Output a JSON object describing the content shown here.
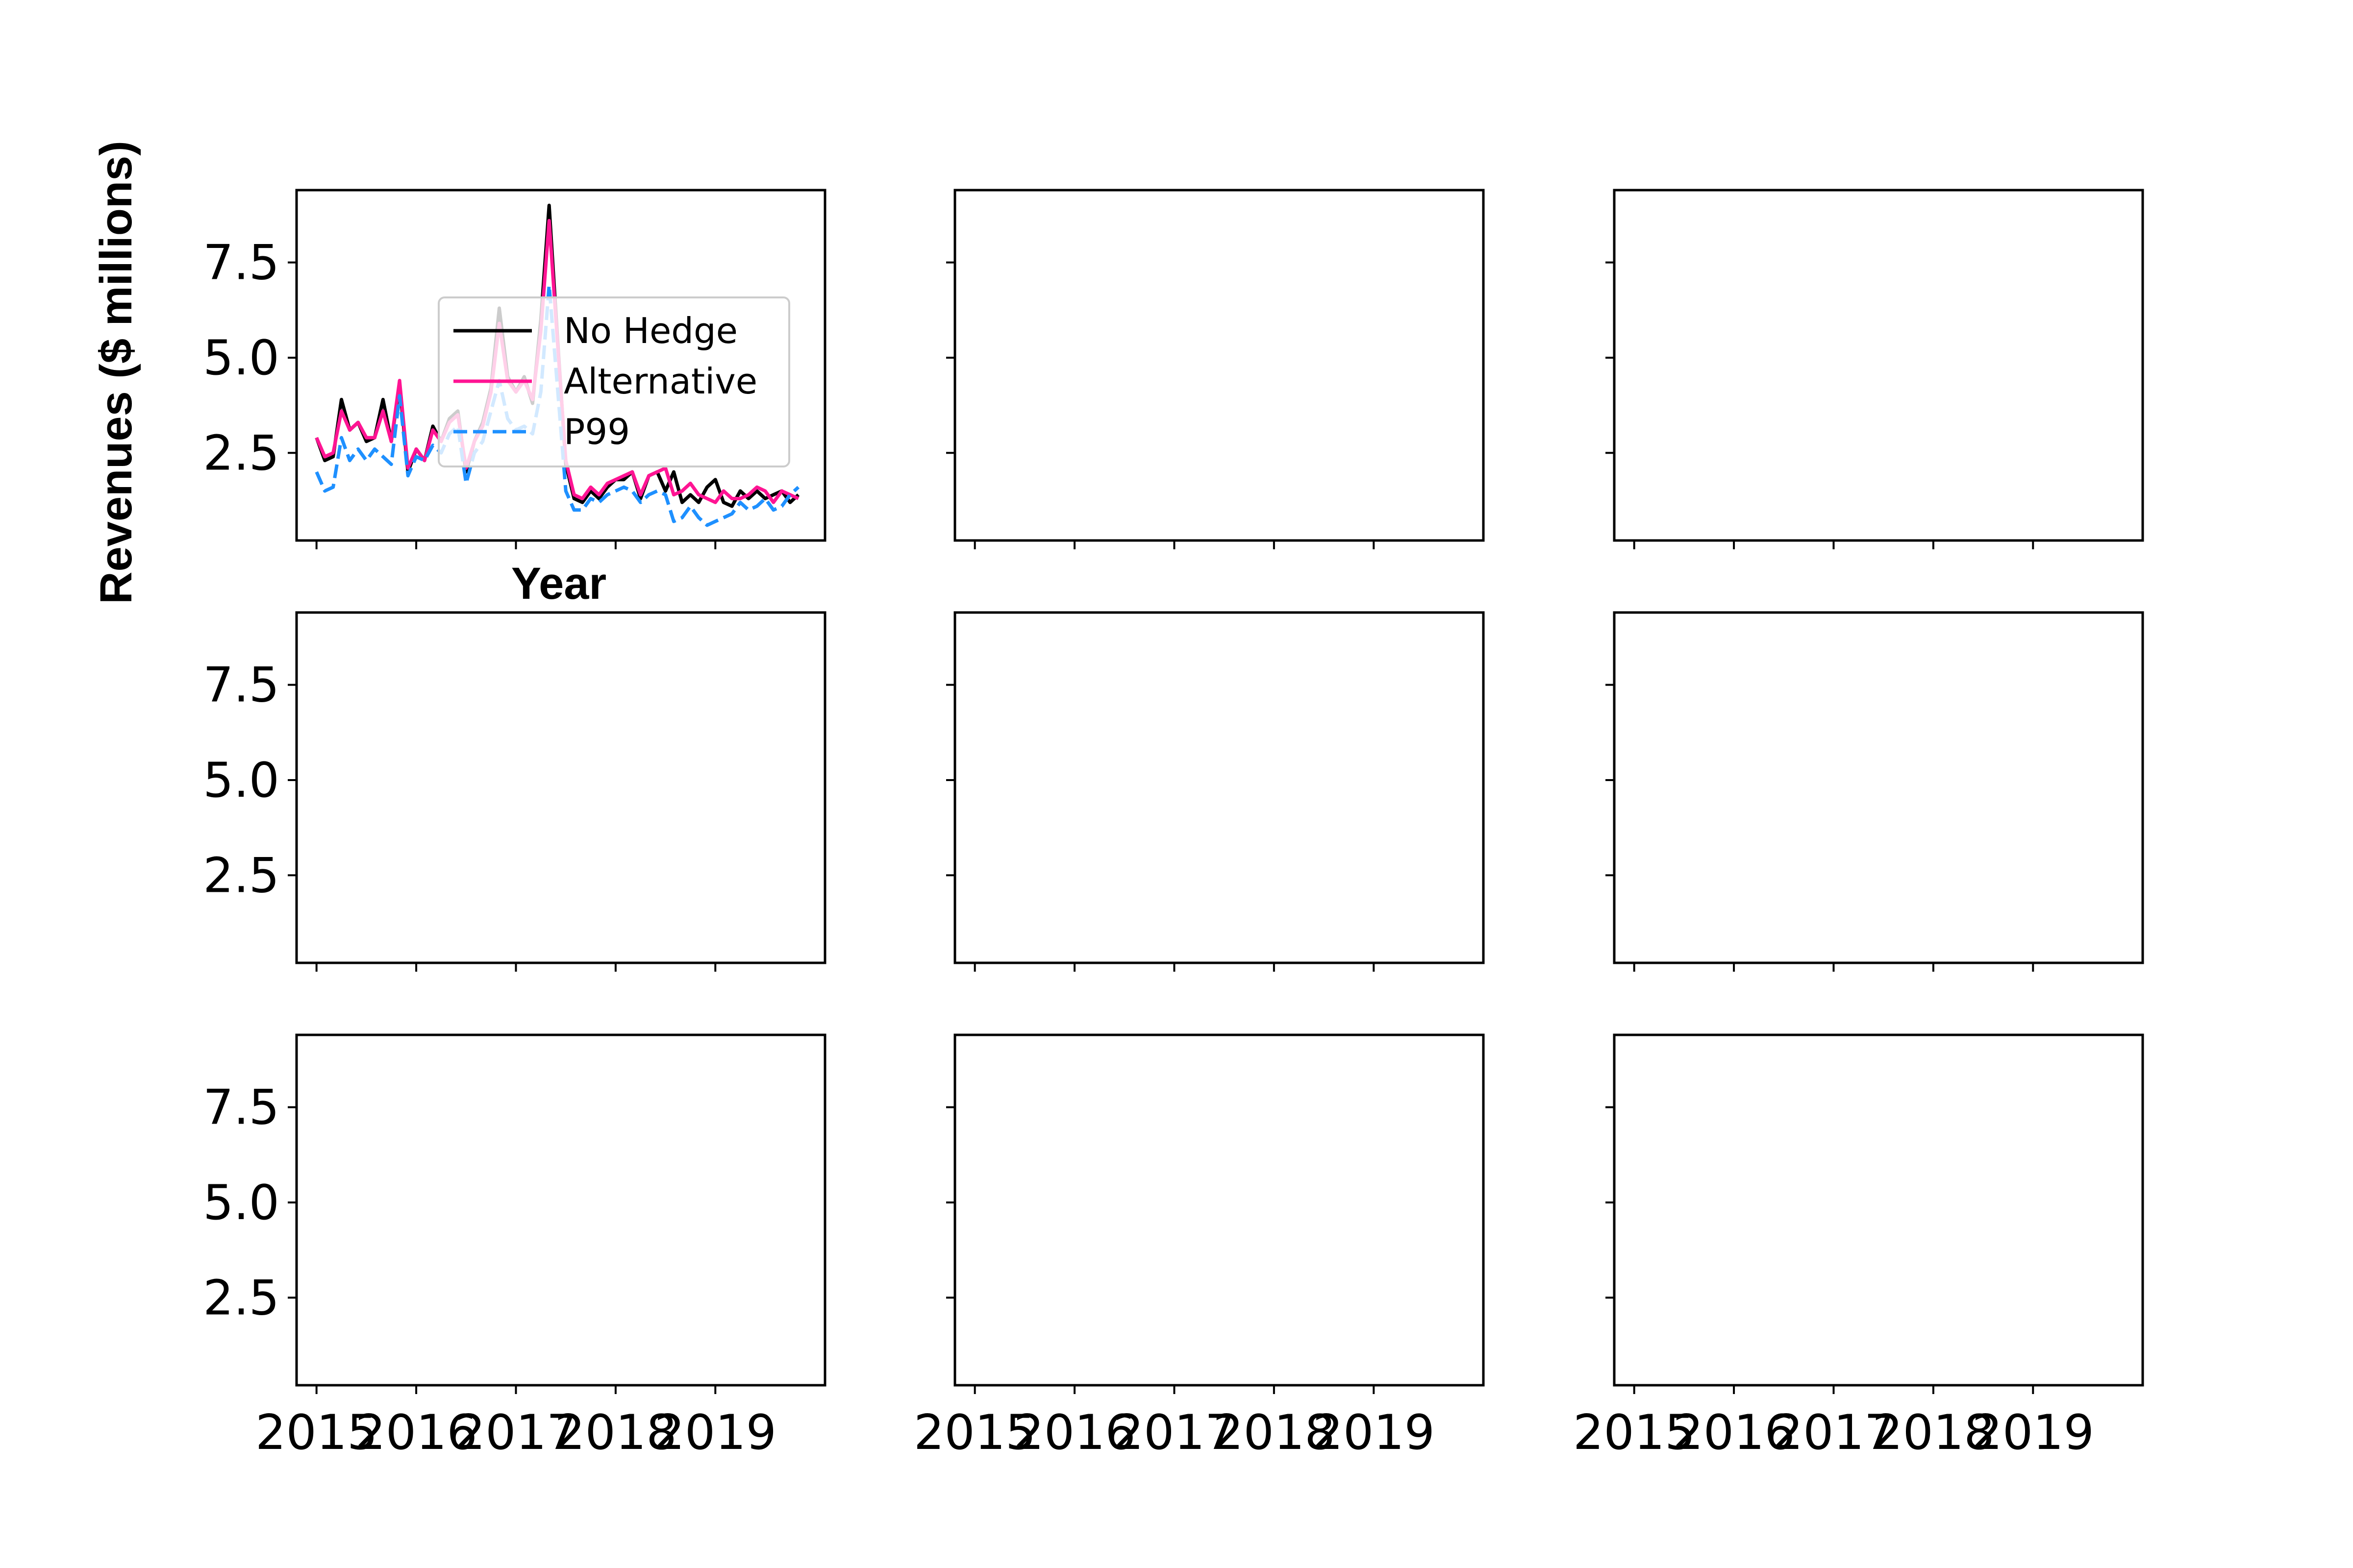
{
  "figure": {
    "ylabel": "Revenues ($ millions)",
    "xlabel": "Year"
  },
  "chart_data": {
    "type": "line",
    "grid": "3x3 subplots, shared x and y axes",
    "xlim": [
      2014.8,
      2020.1
    ],
    "ylim": [
      0.2,
      9.4
    ],
    "xticks": [
      2015,
      2016,
      2017,
      2018,
      2019
    ],
    "xtick_labels": [
      "2015",
      "2016",
      "2017",
      "2018",
      "2019"
    ],
    "yticks": [
      2.5,
      5.0,
      7.5
    ],
    "ytick_labels": [
      "2.5",
      "5.0",
      "7.5"
    ],
    "grid_lines": false,
    "legend_position": "center, upper left subplot",
    "x": [
      2015.0,
      2015.083,
      2015.167,
      2015.25,
      2015.333,
      2015.417,
      2015.5,
      2015.583,
      2015.667,
      2015.75,
      2015.833,
      2015.917,
      2016.0,
      2016.083,
      2016.167,
      2016.25,
      2016.333,
      2016.417,
      2016.5,
      2016.583,
      2016.667,
      2016.75,
      2016.833,
      2016.917,
      2017.0,
      2017.083,
      2017.167,
      2017.25,
      2017.333,
      2017.417,
      2017.5,
      2017.583,
      2017.667,
      2017.75,
      2017.833,
      2017.917,
      2018.0,
      2018.083,
      2018.167,
      2018.25,
      2018.333,
      2018.417,
      2018.5,
      2018.583,
      2018.667,
      2018.75,
      2018.833,
      2018.917,
      2019.0,
      2019.083,
      2019.167,
      2019.25,
      2019.333,
      2019.417,
      2019.5,
      2019.583,
      2019.667,
      2019.75,
      2019.833
    ],
    "series": [
      {
        "name": "No Hedge",
        "color": "#000000",
        "style": "solid",
        "values": [
          2.9,
          2.3,
          2.4,
          3.9,
          3.1,
          3.3,
          2.8,
          2.9,
          3.9,
          2.8,
          4.3,
          2.0,
          2.6,
          2.3,
          3.2,
          2.8,
          3.4,
          3.6,
          2.0,
          2.8,
          3.3,
          4.2,
          6.3,
          4.5,
          4.1,
          4.5,
          3.8,
          6.0,
          9.0,
          5.5,
          2.2,
          1.3,
          1.2,
          1.5,
          1.3,
          1.6,
          1.8,
          1.8,
          2.0,
          1.3,
          1.9,
          2.0,
          1.5,
          2.0,
          1.2,
          1.4,
          1.2,
          1.6,
          1.8,
          1.2,
          1.1,
          1.5,
          1.3,
          1.5,
          1.3,
          1.4,
          1.5,
          1.2,
          1.4
        ]
      },
      {
        "name": "Alternative",
        "color": "#ff1493",
        "style": "solid",
        "values": [
          2.9,
          2.4,
          2.5,
          3.6,
          3.1,
          3.3,
          2.9,
          2.9,
          3.6,
          2.8,
          4.4,
          2.1,
          2.6,
          2.3,
          3.1,
          2.8,
          3.3,
          3.5,
          2.1,
          2.8,
          3.2,
          4.1,
          5.9,
          4.4,
          4.1,
          4.4,
          3.9,
          5.7,
          8.6,
          5.4,
          2.3,
          1.4,
          1.3,
          1.6,
          1.4,
          1.7,
          1.8,
          1.9,
          2.0,
          1.4,
          1.9,
          2.0,
          2.1,
          1.4,
          1.5,
          1.7,
          1.4,
          1.3,
          1.2,
          1.5,
          1.3,
          1.3,
          1.4,
          1.6,
          1.5,
          1.2,
          1.5,
          1.4,
          1.3
        ]
      },
      {
        "name": "P99",
        "color": "#1e90ff",
        "style": "dashed",
        "values": [
          2.0,
          1.5,
          1.6,
          2.9,
          2.3,
          2.6,
          2.3,
          2.6,
          2.4,
          2.2,
          4.0,
          1.9,
          2.4,
          2.3,
          2.7,
          2.5,
          3.0,
          3.2,
          1.7,
          2.5,
          2.8,
          3.6,
          4.4,
          3.4,
          3.1,
          3.2,
          3.0,
          4.1,
          6.9,
          4.2,
          1.5,
          1.0,
          1.0,
          1.3,
          1.2,
          1.4,
          1.5,
          1.6,
          1.5,
          1.2,
          1.4,
          1.5,
          1.4,
          0.7,
          0.8,
          1.1,
          0.8,
          0.6,
          0.7,
          0.8,
          0.9,
          1.2,
          1.0,
          1.1,
          1.3,
          1.0,
          1.1,
          1.4,
          1.6
        ]
      }
    ]
  }
}
